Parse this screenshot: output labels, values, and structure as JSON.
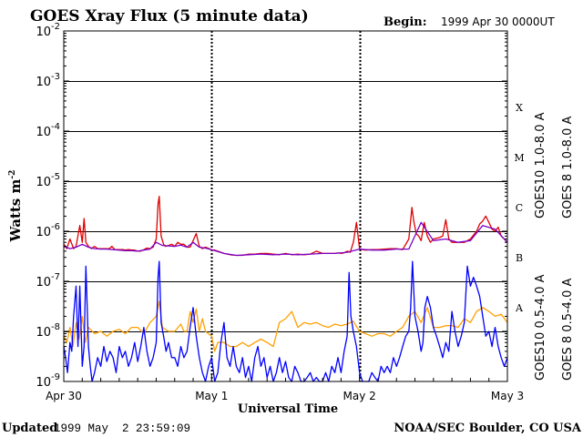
{
  "header": {
    "title": "GOES Xray Flux (5 minute data)",
    "begin_label": "Begin:",
    "begin_value": "1999 Apr 30 0000UT"
  },
  "footer": {
    "updated_label": "Updated",
    "updated_value": "1999 May  2 23:59:09",
    "credit": "NOAA/SEC Boulder, CO USA"
  },
  "colors": {
    "goes8_long": "#e00000",
    "goes10_long": "#7a00c8",
    "goes8_short": "#0000ff",
    "goes10_short": "#ffa000"
  },
  "chart_data": {
    "type": "line",
    "title": "GOES Xray Flux (5 minute data)",
    "xlabel": "Universal Time",
    "ylabel": "Watts m",
    "ylabel_sup": "-2",
    "yscale": "log",
    "ylim": [
      1e-09,
      0.01
    ],
    "xlim": [
      0,
      72
    ],
    "x_unit": "hours since 1999 Apr 30 00:00 UT",
    "y_ticks": [
      {
        "value": 0.01,
        "base": "10",
        "exp": "-2"
      },
      {
        "value": 0.001,
        "base": "10",
        "exp": "-3"
      },
      {
        "value": 0.0001,
        "base": "10",
        "exp": "-4"
      },
      {
        "value": 1e-05,
        "base": "10",
        "exp": "-5"
      },
      {
        "value": 1e-06,
        "base": "10",
        "exp": "-6"
      },
      {
        "value": 1e-07,
        "base": "10",
        "exp": "-7"
      },
      {
        "value": 1e-08,
        "base": "10",
        "exp": "-8"
      },
      {
        "value": 1e-09,
        "base": "10",
        "exp": "-9"
      }
    ],
    "x_ticks": [
      {
        "x": 0,
        "label": "Apr 30"
      },
      {
        "x": 24,
        "label": "May 1"
      },
      {
        "x": 48,
        "label": "May 2"
      },
      {
        "x": 72,
        "label": "May 3"
      }
    ],
    "flare_classes": [
      {
        "label": "X",
        "value": 0.0003
      },
      {
        "label": "M",
        "value": 3e-05
      },
      {
        "label": "C",
        "value": 3e-06
      },
      {
        "label": "B",
        "value": 3e-07
      },
      {
        "label": "A",
        "value": 3e-08
      }
    ],
    "grid": {
      "horizontal_decades": [
        0.001,
        0.0001,
        1e-05,
        1e-06,
        1e-07,
        1e-08
      ],
      "vertical_day_lines": [
        24,
        48
      ],
      "vertical_style": "dotted"
    },
    "legend": {
      "placement": "right, rotated vertical"
    },
    "series": [
      {
        "name": "GOES 8 1.0-8.0 A",
        "key": "goes8_long",
        "color": "#e00000",
        "x": [
          0,
          0.5,
          1,
          1.6,
          2,
          2.6,
          3,
          3.3,
          3.6,
          4,
          4.5,
          5,
          5.5,
          6,
          6.5,
          7,
          7.4,
          7.8,
          8.3,
          9,
          9.6,
          10,
          10.5,
          11,
          11.5,
          12,
          12.5,
          13,
          13.5,
          14,
          14.5,
          15,
          15.3,
          15.5,
          15.8,
          16.2,
          16.5,
          17,
          17.5,
          18,
          18.5,
          19,
          19.5,
          20,
          20.5,
          21,
          21.5,
          22,
          22.5,
          23,
          23.6,
          24,
          24.5,
          25,
          26,
          27,
          28,
          29,
          30,
          31,
          32,
          33,
          34,
          35,
          36,
          37,
          38,
          39,
          40,
          41,
          42,
          43,
          44,
          44.5,
          45,
          45.5,
          46,
          46.5,
          47,
          47.5,
          48,
          48.5,
          49,
          50,
          51,
          52,
          53,
          54,
          55,
          56,
          56.5,
          56.8,
          57.2,
          57.6,
          58,
          58.5,
          59,
          59.5,
          60,
          61,
          61.5,
          62,
          62.5,
          63,
          64,
          65,
          66,
          67,
          67.5,
          68,
          68.5,
          69,
          69.5,
          70,
          70.5,
          71,
          71.5,
          72
        ],
        "y": [
          5.5e-07,
          4.5e-07,
          7e-07,
          4.5e-07,
          5e-07,
          1.3e-06,
          6e-07,
          1.8e-06,
          6e-07,
          5e-07,
          4.5e-07,
          5e-07,
          4.5e-07,
          4.5e-07,
          4.5e-07,
          4.5e-07,
          4.5e-07,
          5e-07,
          4.3e-07,
          4.3e-07,
          4.3e-07,
          4.2e-07,
          4.3e-07,
          4.2e-07,
          4.2e-07,
          4e-07,
          4e-07,
          4.3e-07,
          4.6e-07,
          4.5e-07,
          4.8e-07,
          7e-07,
          3.5e-06,
          5e-06,
          8e-07,
          5.5e-07,
          5e-07,
          5.2e-07,
          5.5e-07,
          5e-07,
          6e-07,
          5.5e-07,
          5.5e-07,
          4.8e-07,
          4.8e-07,
          6.5e-07,
          9e-07,
          5e-07,
          4.5e-07,
          4.8e-07,
          4.5e-07,
          4.2e-07,
          4.2e-07,
          4e-07,
          3.6e-07,
          3.4e-07,
          3.3e-07,
          3.3e-07,
          3.5e-07,
          3.5e-07,
          3.6e-07,
          3.6e-07,
          3.5e-07,
          3.4e-07,
          3.6e-07,
          3.4e-07,
          3.5e-07,
          3.4e-07,
          3.5e-07,
          4e-07,
          3.6e-07,
          3.6e-07,
          3.6e-07,
          3.7e-07,
          3.6e-07,
          3.7e-07,
          4e-07,
          3.8e-07,
          6e-07,
          1.5e-06,
          4.5e-07,
          4.3e-07,
          4.2e-07,
          4.3e-07,
          4.3e-07,
          4.4e-07,
          4.5e-07,
          4.5e-07,
          4.3e-07,
          7e-07,
          3e-06,
          1.6e-06,
          9e-07,
          8e-07,
          6.5e-07,
          1.5e-06,
          8e-07,
          6e-07,
          7e-07,
          7.5e-07,
          8e-07,
          1.7e-06,
          7e-07,
          6e-07,
          6e-07,
          6e-07,
          7e-07,
          1e-06,
          1.4e-06,
          1.6e-06,
          2e-06,
          1.5e-06,
          1.1e-06,
          1e-06,
          1.2e-06,
          8e-07,
          7e-07,
          6e-07
        ]
      },
      {
        "name": "GOES10 1.0-8.0 A",
        "key": "goes10_long",
        "color": "#7a00c8",
        "x": [
          0,
          1,
          2,
          3,
          4,
          5,
          6,
          7,
          8,
          9,
          10,
          11,
          12,
          13,
          14,
          15,
          16,
          17,
          18,
          19,
          20,
          21,
          22,
          23,
          24,
          26,
          28,
          30,
          32,
          34,
          36,
          38,
          40,
          42,
          44,
          46,
          48,
          50,
          52,
          54,
          56,
          58,
          60,
          62,
          64,
          66,
          68,
          70,
          72
        ],
        "y": [
          5e-07,
          4.5e-07,
          4.8e-07,
          5.5e-07,
          4.8e-07,
          4.5e-07,
          4.4e-07,
          4.4e-07,
          4.3e-07,
          4.2e-07,
          4.1e-07,
          4.1e-07,
          4e-07,
          4.2e-07,
          4.4e-07,
          6e-07,
          5.2e-07,
          5.1e-07,
          5e-07,
          5.3e-07,
          4.8e-07,
          6e-07,
          4.8e-07,
          4.6e-07,
          4.3e-07,
          3.6e-07,
          3.3e-07,
          3.4e-07,
          3.5e-07,
          3.4e-07,
          3.5e-07,
          3.4e-07,
          3.5e-07,
          3.6e-07,
          3.6e-07,
          3.8e-07,
          4.4e-07,
          4.2e-07,
          4.2e-07,
          4.4e-07,
          4.4e-07,
          1.5e-06,
          6.5e-07,
          7e-07,
          6e-07,
          6.5e-07,
          1.3e-06,
          1.1e-06,
          6e-07
        ]
      },
      {
        "name": "GOES10 0.5-4.0 A",
        "key": "goes10_short",
        "color": "#ffa000",
        "x": [
          0,
          0.5,
          1,
          1.5,
          2,
          2.5,
          3,
          3.5,
          4,
          5,
          6,
          7,
          8,
          9,
          10,
          11,
          12,
          13,
          14,
          15,
          15.5,
          16,
          17,
          18,
          19,
          19.5,
          20,
          20.5,
          21,
          21.5,
          22,
          22.5,
          23,
          24,
          24.5,
          25,
          26,
          27,
          28,
          29,
          30,
          31,
          32,
          33,
          34,
          35,
          36,
          37,
          38,
          39,
          40,
          41,
          42,
          43,
          44,
          45,
          46,
          47,
          48,
          49,
          50,
          51,
          52,
          53,
          54,
          55,
          56,
          57,
          58,
          59,
          60,
          61,
          62,
          63,
          64,
          65,
          66,
          67,
          68,
          69,
          70,
          71,
          72
        ],
        "y": [
          8e-09,
          6e-09,
          1.2e-08,
          5e-09,
          1.5e-08,
          7e-09,
          2e-08,
          6e-09,
          1.2e-08,
          9e-09,
          1e-08,
          8e-09,
          1e-08,
          1.1e-08,
          9e-09,
          1.2e-08,
          1.2e-08,
          9e-09,
          1.5e-08,
          2e-08,
          4e-08,
          1.2e-08,
          1e-08,
          1e-08,
          1.4e-08,
          1e-08,
          1e-08,
          2.5e-08,
          1.5e-08,
          2.8e-08,
          1e-08,
          1.8e-08,
          1e-08,
          8e-09,
          4e-09,
          6e-09,
          6e-09,
          5e-09,
          5e-09,
          6e-09,
          5e-09,
          6e-09,
          7e-09,
          6e-09,
          5e-09,
          1.5e-08,
          1.8e-08,
          2.5e-08,
          1.2e-08,
          1.5e-08,
          1.4e-08,
          1.5e-08,
          1.3e-08,
          1.2e-08,
          1.4e-08,
          1.3e-08,
          1.4e-08,
          1.6e-08,
          1e-08,
          9e-09,
          8e-09,
          9e-09,
          9e-09,
          8e-09,
          1e-08,
          1.2e-08,
          2e-08,
          2.5e-08,
          1.5e-08,
          3e-08,
          1.2e-08,
          1.2e-08,
          1.3e-08,
          1.3e-08,
          1.2e-08,
          1.8e-08,
          1.5e-08,
          2.5e-08,
          3e-08,
          2.5e-08,
          2e-08,
          2.2e-08,
          1.5e-08
        ]
      },
      {
        "name": "GOES 8 0.5-4.0 A",
        "key": "goes8_short",
        "color": "#0000ff",
        "x": [
          0,
          0.3,
          0.6,
          1,
          1.3,
          1.6,
          2,
          2.3,
          2.6,
          3,
          3.3,
          3.6,
          4,
          4.3,
          4.6,
          5,
          5.5,
          6,
          6.5,
          7,
          7.5,
          8,
          8.5,
          9,
          9.5,
          10,
          10.5,
          11,
          11.5,
          12,
          12.5,
          13,
          13.5,
          14,
          14.5,
          15,
          15.3,
          15.5,
          15.8,
          16.2,
          16.6,
          17,
          17.5,
          18,
          18.5,
          19,
          19.5,
          20,
          20.5,
          21,
          21.5,
          22,
          22.5,
          23,
          23.5,
          24,
          24.5,
          25,
          25.5,
          26,
          26.5,
          27,
          27.5,
          28,
          28.5,
          29,
          29.5,
          30,
          30.5,
          31,
          31.5,
          32,
          32.5,
          33,
          33.5,
          34,
          34.5,
          35,
          35.5,
          36,
          36.5,
          37,
          37.5,
          38,
          38.5,
          39,
          39.5,
          40,
          40.5,
          41,
          41.5,
          42,
          42.5,
          43,
          43.5,
          44,
          44.5,
          45,
          45.5,
          46,
          46.3,
          46.6,
          47,
          47.5,
          48,
          48.5,
          49,
          49.5,
          50,
          50.5,
          51,
          51.5,
          52,
          52.5,
          53,
          53.5,
          54,
          54.5,
          55,
          55.5,
          56,
          56.3,
          56.6,
          57,
          57.5,
          58,
          58.3,
          58.6,
          59,
          59.5,
          60,
          60.5,
          61,
          61.5,
          62,
          62.5,
          63,
          63.5,
          64,
          64.5,
          65,
          65.5,
          66,
          66.5,
          67,
          67.5,
          68,
          68.5,
          69,
          69.5,
          70,
          70.5,
          71,
          71.5,
          72
        ],
        "y": [
          5e-09,
          3e-09,
          1.5e-09,
          6e-09,
          4e-09,
          2e-08,
          8e-08,
          5e-09,
          8e-08,
          2e-09,
          5e-09,
          2e-07,
          5e-09,
          2e-09,
          1e-09,
          1.5e-09,
          3e-09,
          2e-09,
          5e-09,
          2.5e-09,
          4e-09,
          3e-09,
          1.5e-09,
          5e-09,
          3e-09,
          4e-09,
          2e-09,
          3e-09,
          6e-09,
          2.5e-09,
          5e-09,
          1.2e-08,
          4e-09,
          2e-09,
          3e-09,
          6e-09,
          1.2e-07,
          2.5e-07,
          1.5e-08,
          8e-09,
          4e-09,
          6e-09,
          3e-09,
          3e-09,
          2e-09,
          5e-09,
          3e-09,
          4e-09,
          1.2e-08,
          3e-08,
          8e-09,
          3e-09,
          1.5e-09,
          1e-09,
          2e-09,
          3e-09,
          1e-09,
          1.5e-09,
          6e-09,
          1.5e-08,
          3e-09,
          2e-09,
          5e-09,
          2e-09,
          1.5e-09,
          3e-09,
          1.2e-09,
          2e-09,
          1e-09,
          3e-09,
          5e-09,
          2e-09,
          3e-09,
          1.2e-09,
          2e-09,
          1e-09,
          1.5e-09,
          3e-09,
          1.5e-09,
          2.5e-09,
          1.2e-09,
          1e-09,
          2e-09,
          1.5e-09,
          1e-09,
          8e-10,
          1.2e-09,
          1.5e-09,
          1e-09,
          1.2e-09,
          8e-10,
          1e-09,
          1.5e-09,
          1e-09,
          2e-09,
          1.5e-09,
          3e-09,
          1.5e-09,
          4e-09,
          8e-09,
          1.5e-07,
          2e-08,
          1e-08,
          5e-09,
          1.5e-09,
          1e-09,
          9e-10,
          8e-10,
          1.5e-09,
          1.2e-09,
          1e-09,
          2e-09,
          1.5e-09,
          2e-09,
          1.5e-09,
          3e-09,
          2e-09,
          3e-09,
          5e-09,
          8e-09,
          1e-08,
          3e-08,
          2.5e-07,
          2e-08,
          1e-08,
          4e-09,
          6e-09,
          3e-08,
          5e-08,
          3e-08,
          1.2e-08,
          8e-09,
          5e-09,
          3e-09,
          6e-09,
          4e-09,
          2.5e-08,
          1e-08,
          5e-09,
          8e-09,
          1.5e-08,
          2e-07,
          8e-08,
          1.2e-07,
          8e-08,
          5e-08,
          2e-08,
          8e-09,
          1e-08,
          5e-09,
          1.2e-08,
          5e-09,
          3e-09,
          2e-09,
          3e-09
        ]
      }
    ]
  }
}
